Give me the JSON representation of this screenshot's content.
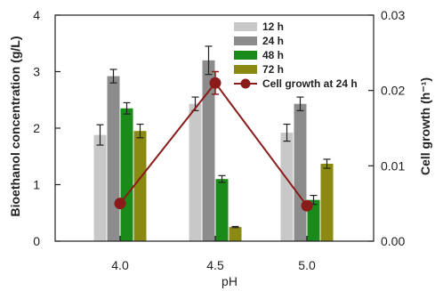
{
  "chart_data": {
    "type": "bar",
    "categories": [
      "4.0",
      "4.5",
      "5.0"
    ],
    "xlabel": "pH",
    "ylabel_left": "Bioethanol concentration (g/L)",
    "ylabel_right": "Cell growth (h⁻¹)",
    "ylim_left": [
      0,
      4
    ],
    "ylim_right": [
      0,
      0.03
    ],
    "yticks_left": [
      "0",
      "1",
      "2",
      "3",
      "4"
    ],
    "yticks_right": [
      "0.00",
      "0.01",
      "0.02",
      "0.03"
    ],
    "legend_position": "top-right",
    "grid": false,
    "series": [
      {
        "name": "12 h",
        "color": "#c8c8c8",
        "values": [
          1.88,
          2.43,
          1.92
        ],
        "errors": [
          0.18,
          0.12,
          0.15
        ]
      },
      {
        "name": "24 h",
        "color": "#8c8c8c",
        "values": [
          2.92,
          3.2,
          2.43
        ],
        "errors": [
          0.12,
          0.25,
          0.12
        ]
      },
      {
        "name": "48 h",
        "color": "#1a8a1a",
        "values": [
          2.35,
          1.1,
          0.73
        ],
        "errors": [
          0.1,
          0.06,
          0.08
        ]
      },
      {
        "name": "72 h",
        "color": "#8a8a12",
        "values": [
          1.95,
          0.25,
          1.37
        ],
        "errors": [
          0.12,
          0.01,
          0.08
        ]
      }
    ],
    "line_series": {
      "name": "Cell growth at 24 h",
      "color": "#8b1a1a",
      "axis": "right",
      "values": [
        0.005,
        0.021,
        0.0047
      ],
      "errors": [
        0.0002,
        0.0015,
        0.0002
      ]
    }
  }
}
